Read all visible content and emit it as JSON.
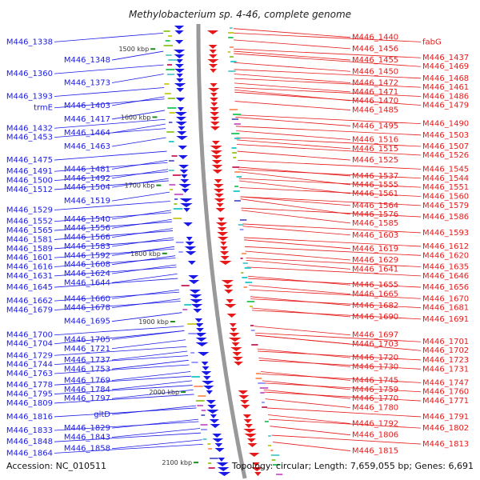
{
  "title": "Methylobacterium sp. 4-46, complete genome",
  "footer": {
    "accession": "Accession: NC_010511",
    "topology": "Topology: circular; Length: 7,659,055 bp; Genes: 6,691"
  },
  "colors": {
    "forward_strand": "#1a1ae6",
    "reverse_strand": "#e61a1a",
    "backbone": "#999999",
    "tick": "#1a8c1a"
  },
  "scale_ticks": [
    {
      "label": "1500 kbp",
      "t": 0.055
    },
    {
      "label": "1600 kbp",
      "t": 0.205
    },
    {
      "label": "1700 kbp",
      "t": 0.355
    },
    {
      "label": "1800 kbp",
      "t": 0.505
    },
    {
      "label": "1900 kbp",
      "t": 0.655
    },
    {
      "label": "2000 kbp",
      "t": 0.81
    },
    {
      "label": "2100 kbp",
      "t": 0.965
    }
  ],
  "left_labels": [
    {
      "text": "M446_1338",
      "t": 0.02
    },
    {
      "text": "M446_1348",
      "t": 0.06
    },
    {
      "text": "M446_1360",
      "t": 0.09
    },
    {
      "text": "M446_1373",
      "t": 0.11
    },
    {
      "text": "M446_1393",
      "t": 0.14
    },
    {
      "text": "M446_1403",
      "t": 0.16
    },
    {
      "text": "trmE",
      "t": 0.165
    },
    {
      "text": "M446_1417",
      "t": 0.19
    },
    {
      "text": "M446_1432",
      "t": 0.21
    },
    {
      "text": "M446_1464",
      "t": 0.22
    },
    {
      "text": "M446_1453",
      "t": 0.23
    },
    {
      "text": "M446_1463",
      "t": 0.25
    },
    {
      "text": "M446_1475",
      "t": 0.28
    },
    {
      "text": "M446_1481",
      "t": 0.3
    },
    {
      "text": "M446_1491",
      "t": 0.305
    },
    {
      "text": "M446_1492",
      "t": 0.32
    },
    {
      "text": "M446_1500",
      "t": 0.325
    },
    {
      "text": "M446_1504",
      "t": 0.34
    },
    {
      "text": "M446_1512",
      "t": 0.345
    },
    {
      "text": "M446_1519",
      "t": 0.37
    },
    {
      "text": "M446_1529",
      "t": 0.39
    },
    {
      "text": "M446_1540",
      "t": 0.41
    },
    {
      "text": "M446_1552",
      "t": 0.415
    },
    {
      "text": "M446_1556",
      "t": 0.43
    },
    {
      "text": "M446_1565",
      "t": 0.435
    },
    {
      "text": "M446_1566",
      "t": 0.45
    },
    {
      "text": "M446_1581",
      "t": 0.455
    },
    {
      "text": "M446_1583",
      "t": 0.47
    },
    {
      "text": "M446_1589",
      "t": 0.475
    },
    {
      "text": "M446_1592",
      "t": 0.49
    },
    {
      "text": "M446_1601",
      "t": 0.495
    },
    {
      "text": "M446_1608",
      "t": 0.51
    },
    {
      "text": "M446_1616",
      "t": 0.515
    },
    {
      "text": "M446_1624",
      "t": 0.53
    },
    {
      "text": "M446_1631",
      "t": 0.535
    },
    {
      "text": "M446_1644",
      "t": 0.55
    },
    {
      "text": "M446_1645",
      "t": 0.56
    },
    {
      "text": "M446_1660",
      "t": 0.585
    },
    {
      "text": "M446_1662",
      "t": 0.59
    },
    {
      "text": "M446_1678",
      "t": 0.605
    },
    {
      "text": "M446_1679",
      "t": 0.61
    },
    {
      "text": "M446_1695",
      "t": 0.635
    },
    {
      "text": "M446_1700",
      "t": 0.665
    },
    {
      "text": "M446_1705",
      "t": 0.675
    },
    {
      "text": "M446_1704",
      "t": 0.675
    },
    {
      "text": "M446_1721",
      "t": 0.695
    },
    {
      "text": "M446_1729",
      "t": 0.71
    },
    {
      "text": "M446_1737",
      "t": 0.72
    },
    {
      "text": "M446_1744",
      "t": 0.73
    },
    {
      "text": "M446_1753",
      "t": 0.74
    },
    {
      "text": "M446_1763",
      "t": 0.75
    },
    {
      "text": "M446_1769",
      "t": 0.765
    },
    {
      "text": "M446_1778",
      "t": 0.775
    },
    {
      "text": "M446_1784",
      "t": 0.785
    },
    {
      "text": "M446_1795",
      "t": 0.795
    },
    {
      "text": "M446_1797",
      "t": 0.805
    },
    {
      "text": "M446_1809",
      "t": 0.815
    },
    {
      "text": "gltD",
      "t": 0.84
    },
    {
      "text": "M446_1816",
      "t": 0.845
    },
    {
      "text": "M446_1829",
      "t": 0.87
    },
    {
      "text": "M446_1833",
      "t": 0.875
    },
    {
      "text": "M446_1843",
      "t": 0.89
    },
    {
      "text": "M446_1848",
      "t": 0.9
    },
    {
      "text": "M446_1858",
      "t": 0.915
    },
    {
      "text": "M446_1864",
      "t": 0.925
    }
  ],
  "right_labels": [
    {
      "text": "M446_1440",
      "t": 0.01
    },
    {
      "text": "fabG",
      "t": 0.02
    },
    {
      "text": "M446_1456",
      "t": 0.035
    },
    {
      "text": "M446_1437",
      "t": 0.055
    },
    {
      "text": "M446_1455",
      "t": 0.06
    },
    {
      "text": "M446_1469",
      "t": 0.065
    },
    {
      "text": "M446_1450",
      "t": 0.085
    },
    {
      "text": "M446_1468",
      "t": 0.1
    },
    {
      "text": "M446_1472",
      "t": 0.11
    },
    {
      "text": "M446_1461",
      "t": 0.12
    },
    {
      "text": "M446_1471",
      "t": 0.13
    },
    {
      "text": "M446_1486",
      "t": 0.14
    },
    {
      "text": "M446_1470",
      "t": 0.145
    },
    {
      "text": "M446_1479",
      "t": 0.15
    },
    {
      "text": "M446_1485",
      "t": 0.17
    },
    {
      "text": "M446_1490",
      "t": 0.2
    },
    {
      "text": "M446_1495",
      "t": 0.205
    },
    {
      "text": "M446_1503",
      "t": 0.225
    },
    {
      "text": "M446_1516",
      "t": 0.235
    },
    {
      "text": "M446_1507",
      "t": 0.25
    },
    {
      "text": "M446_1515",
      "t": 0.255
    },
    {
      "text": "M446_1526",
      "t": 0.265
    },
    {
      "text": "M446_1525",
      "t": 0.28
    },
    {
      "text": "M446_1545",
      "t": 0.3
    },
    {
      "text": "M446_1537",
      "t": 0.315
    },
    {
      "text": "M446_1544",
      "t": 0.32
    },
    {
      "text": "M446_1555",
      "t": 0.325
    },
    {
      "text": "M446_1551",
      "t": 0.34
    },
    {
      "text": "M446_1561",
      "t": 0.345
    },
    {
      "text": "M446_1560",
      "t": 0.36
    },
    {
      "text": "M446_1564",
      "t": 0.38
    },
    {
      "text": "M446_1576",
      "t": 0.385
    },
    {
      "text": "M446_1579",
      "t": 0.38
    },
    {
      "text": "M446_1586",
      "t": 0.405
    },
    {
      "text": "M446_1585",
      "t": 0.41
    },
    {
      "text": "M446_1593",
      "t": 0.44
    },
    {
      "text": "M446_1603",
      "t": 0.445
    },
    {
      "text": "M446_1612",
      "t": 0.47
    },
    {
      "text": "M446_1619",
      "t": 0.475
    },
    {
      "text": "M446_1620",
      "t": 0.49
    },
    {
      "text": "M446_1629",
      "t": 0.5
    },
    {
      "text": "M446_1635",
      "t": 0.515
    },
    {
      "text": "M446_1641",
      "t": 0.52
    },
    {
      "text": "M446_1646",
      "t": 0.535
    },
    {
      "text": "M446_1656",
      "t": 0.56
    },
    {
      "text": "M446_1655",
      "t": 0.555
    },
    {
      "text": "M446_1665",
      "t": 0.575
    },
    {
      "text": "M446_1670",
      "t": 0.585
    },
    {
      "text": "M446_1682",
      "t": 0.6
    },
    {
      "text": "M446_1681",
      "t": 0.605
    },
    {
      "text": "M446_1690",
      "t": 0.625
    },
    {
      "text": "M446_1691",
      "t": 0.63
    },
    {
      "text": "M446_1697",
      "t": 0.665
    },
    {
      "text": "M446_1703",
      "t": 0.685
    },
    {
      "text": "M446_1701",
      "t": 0.68
    },
    {
      "text": "M446_1702",
      "t": 0.685
    },
    {
      "text": "M446_1720",
      "t": 0.715
    },
    {
      "text": "M446_1723",
      "t": 0.72
    },
    {
      "text": "M446_1730",
      "t": 0.735
    },
    {
      "text": "M446_1731",
      "t": 0.74
    },
    {
      "text": "M446_1745",
      "t": 0.765
    },
    {
      "text": "M446_1747",
      "t": 0.77
    },
    {
      "text": "M446_1759",
      "t": 0.785
    },
    {
      "text": "M446_1760",
      "t": 0.79
    },
    {
      "text": "M446_1770",
      "t": 0.805
    },
    {
      "text": "M446_1771",
      "t": 0.81
    },
    {
      "text": "M446_1780",
      "t": 0.825
    },
    {
      "text": "M446_1791",
      "t": 0.845
    },
    {
      "text": "M446_1792",
      "t": 0.86
    },
    {
      "text": "M446_1802",
      "t": 0.87
    },
    {
      "text": "M446_1806",
      "t": 0.885
    },
    {
      "text": "M446_1813",
      "t": 0.905
    },
    {
      "text": "M446_1815",
      "t": 0.92
    }
  ]
}
